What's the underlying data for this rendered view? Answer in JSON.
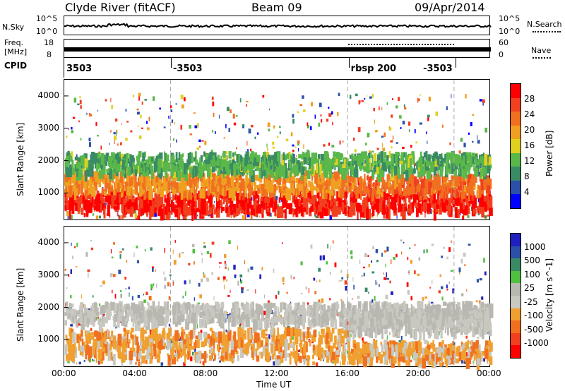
{
  "header": {
    "station": "Clyde River (fitACF)",
    "beam": "Beam 09",
    "date": "09/Apr/2014"
  },
  "nsky_panel": {
    "left_label": "N.Sky",
    "right_label": "N.Search",
    "left_ticks": [
      "10^5",
      "10^0"
    ],
    "right_ticks": [
      "10^5",
      "10^0"
    ]
  },
  "freq_panel": {
    "left_label_1": "Freq.",
    "left_label_2": "[MHz]",
    "right_label": "Nave",
    "left_ticks": [
      "18",
      "8"
    ],
    "right_ticks": [
      "60",
      "0"
    ]
  },
  "cpid": {
    "label": "CPID",
    "segments": [
      {
        "text": "3503",
        "start_hour": 0
      },
      {
        "text": "-3503",
        "start_hour": 6
      },
      {
        "text": "rbsp 200",
        "start_hour": 16
      },
      {
        "text": "-3503",
        "start_hour": 22
      }
    ]
  },
  "xaxis": {
    "label": "Time UT",
    "ticks": [
      "00:00",
      "04:00",
      "08:00",
      "12:00",
      "16:00",
      "20:00",
      "00:00"
    ]
  },
  "colors": {
    "power": [
      "#0000ff",
      "#2a50a8",
      "#3a8a64",
      "#5ab84a",
      "#e0d020",
      "#f0a020",
      "#f07020",
      "#f04020",
      "#ff0000"
    ],
    "velocity": [
      "#ff0000",
      "#f04020",
      "#f07020",
      "#f0a030",
      "#c8c8c0",
      "#b8b8b0",
      "#50c040",
      "#3a8a64",
      "#2a50a8",
      "#2020c0"
    ]
  },
  "chart_data": [
    {
      "type": "heatmap",
      "panel": "power",
      "ylabel": "Slant Range [km]",
      "xlabel": "",
      "xlim": [
        0,
        24
      ],
      "ylim": [
        180,
        4500
      ],
      "yticks": [
        "1000",
        "2000",
        "3000",
        "4000"
      ],
      "colorbar": {
        "label": "Power [dB]",
        "ticks": [
          "4",
          "8",
          "12",
          "16",
          "20",
          "24",
          "28"
        ],
        "range": [
          0,
          30
        ]
      },
      "bands": [
        {
          "x": [
            0,
            24
          ],
          "y": [
            500,
            1100
          ],
          "value": 27
        },
        {
          "x": [
            0,
            16
          ],
          "y": [
            1100,
            1700
          ],
          "value": 20
        },
        {
          "x": [
            16,
            24
          ],
          "y": [
            1100,
            1600
          ],
          "value": 22
        },
        {
          "x": [
            0,
            24
          ],
          "y": [
            1700,
            2300
          ],
          "value": 11
        }
      ]
    },
    {
      "type": "heatmap",
      "panel": "velocity",
      "ylabel": "Slant Range [km]",
      "xlabel": "Time UT",
      "xlim": [
        0,
        24
      ],
      "ylim": [
        180,
        4500
      ],
      "yticks": [
        "1000",
        "2000",
        "3000",
        "4000"
      ],
      "colorbar": {
        "label": "Velocity [m s^-1]",
        "ticks": [
          "1000",
          "500",
          "100",
          "25",
          "-25",
          "-100",
          "-500",
          "-1000"
        ],
        "range": [
          -1000,
          1000
        ]
      },
      "bands": [
        {
          "x": [
            0,
            16
          ],
          "y": [
            500,
            1400
          ],
          "value": -300
        },
        {
          "x": [
            16,
            24
          ],
          "y": [
            1300,
            2000
          ],
          "value": 0
        },
        {
          "x": [
            0,
            24
          ],
          "y": [
            1600,
            2200
          ],
          "value": 0
        },
        {
          "x": [
            16,
            24
          ],
          "y": [
            400,
            1000
          ],
          "value": -300
        }
      ]
    }
  ]
}
